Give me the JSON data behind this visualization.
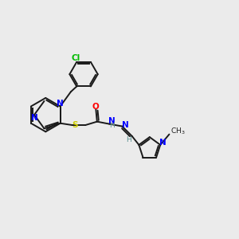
{
  "background_color": "#ebebeb",
  "bond_color": "#1a1a1a",
  "atom_colors": {
    "N": "#0000ff",
    "S": "#cccc00",
    "O": "#ff0000",
    "Cl": "#00bb00",
    "H": "#5a9090",
    "C": "#1a1a1a"
  },
  "figsize": [
    3.0,
    3.0
  ],
  "dpi": 100
}
